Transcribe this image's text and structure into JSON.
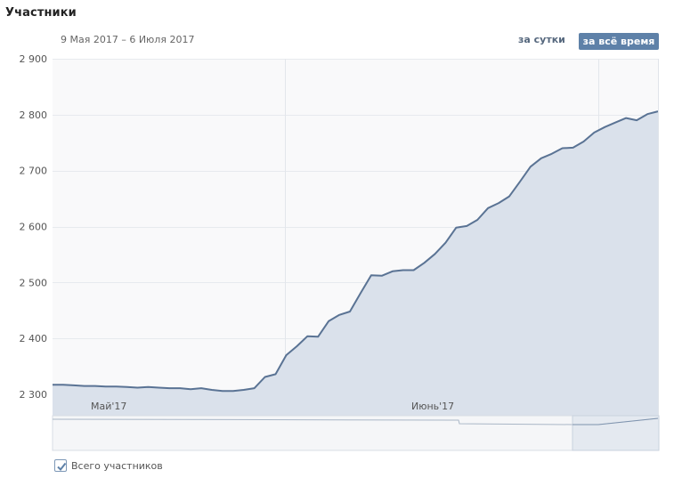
{
  "header": {
    "title": "Участники",
    "date_range": "9 Мая 2017 – 6 Июля 2017"
  },
  "period_buttons": {
    "day_label": "за сутки",
    "all_time_label": "за всё время",
    "selected": "all_time"
  },
  "legend": {
    "checkbox_label": "Всего участников",
    "checked": true
  },
  "colors": {
    "line": "#5a7394",
    "area": "#dae1eb",
    "button_active_bg": "#5e81a8"
  },
  "chart_data": {
    "type": "area",
    "x_tick_labels": [
      "Май'17",
      "Июнь'17"
    ],
    "y_ticks": [
      "2 900",
      "2 800",
      "2 700",
      "2 600",
      "2 500",
      "2 400",
      "2 300"
    ],
    "ylim": [
      2300,
      2900
    ],
    "grid": true,
    "series": [
      {
        "values": [
          2317,
          2317,
          2316,
          2315,
          2315,
          2314,
          2314,
          2313,
          2312,
          2313,
          2312,
          2311,
          2311,
          2309,
          2311,
          2308,
          2306,
          2306,
          2308,
          2311,
          2331,
          2336,
          2370,
          2386,
          2404,
          2403,
          2431,
          2442,
          2448,
          2481,
          2513,
          2512,
          2520,
          2522,
          2522,
          2535,
          2551,
          2571,
          2598,
          2601,
          2612,
          2633,
          2642,
          2654,
          2680,
          2707,
          2722,
          2730,
          2740,
          2741,
          2752,
          2768,
          2778,
          2786,
          2794,
          2790,
          2801,
          2806
        ]
      }
    ]
  }
}
